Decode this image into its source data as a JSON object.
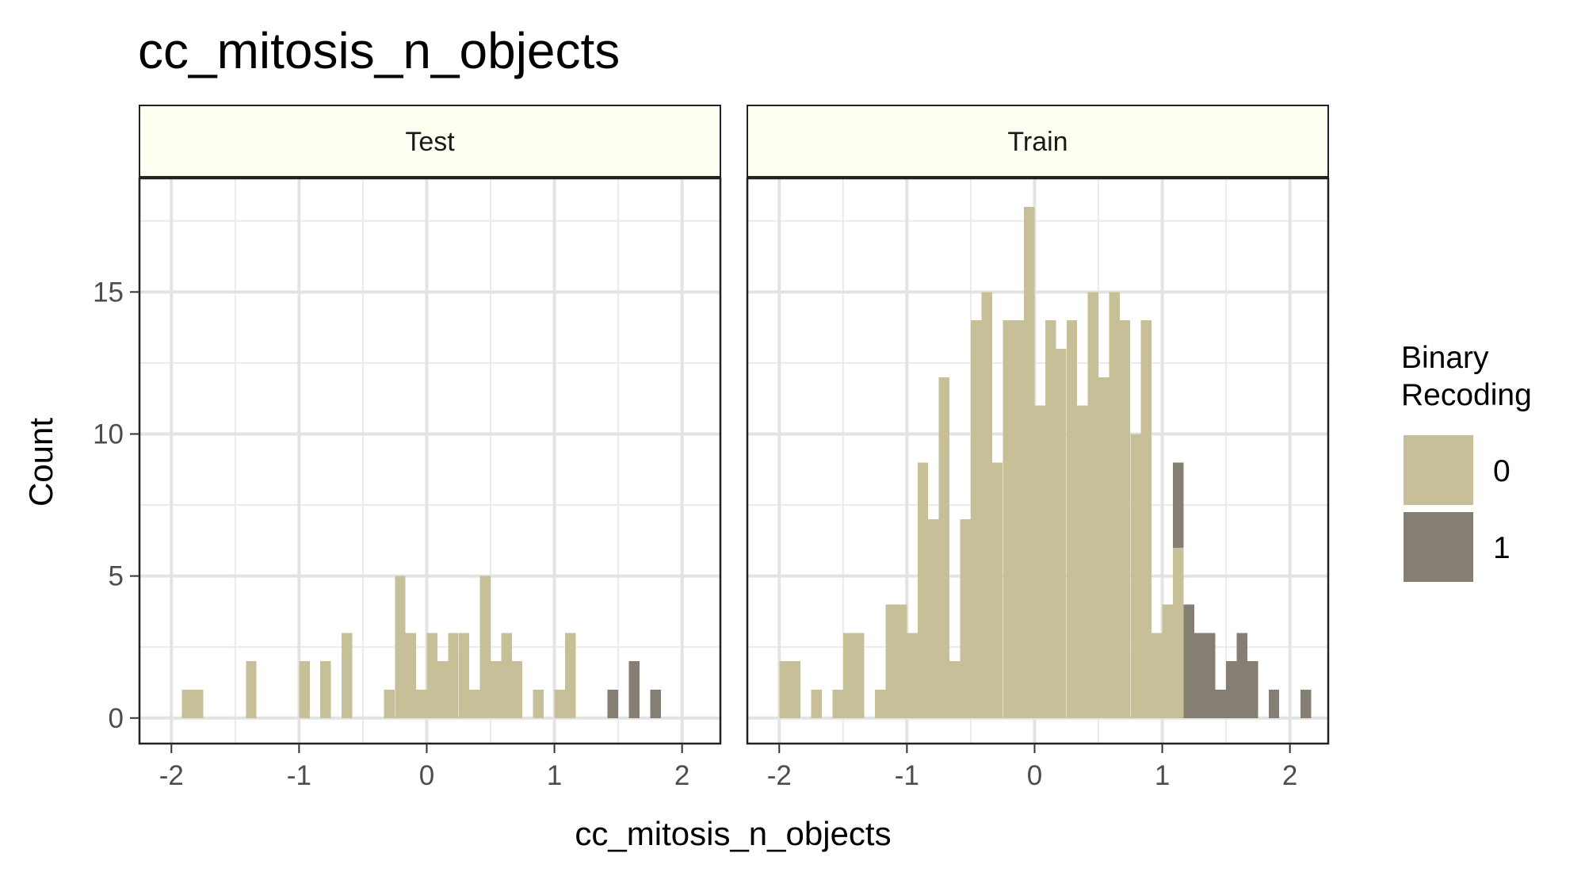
{
  "chart_data": {
    "type": "histogram",
    "title": "cc_mitosis_n_objects",
    "xlabel": "cc_mitosis_n_objects",
    "ylabel": "Count",
    "xlim": [
      -2.25,
      2.3
    ],
    "ylim": [
      -0.9,
      19
    ],
    "x_ticks": [
      -2,
      -1,
      0,
      1,
      2
    ],
    "x_tick_labels": [
      "-2",
      "-1",
      "0",
      "1",
      "2"
    ],
    "y_ticks": [
      0,
      5,
      10,
      15
    ],
    "y_tick_labels": [
      "0",
      "5",
      "10",
      "15"
    ],
    "grid": true,
    "bin_width": 0.0833,
    "facets": [
      "Test",
      "Train"
    ],
    "legend": {
      "title_lines": [
        "Binary",
        "Recoding"
      ],
      "position": "right",
      "entries": [
        {
          "label": "0",
          "color": "#c6bf98"
        },
        {
          "label": "1",
          "color": "#857e73"
        }
      ]
    },
    "panels": [
      {
        "facet": "Test",
        "bins": [
          {
            "x": -1.875,
            "count": 1,
            "group": "0"
          },
          {
            "x": -1.792,
            "count": 1,
            "group": "0"
          },
          {
            "x": -1.375,
            "count": 2,
            "group": "0"
          },
          {
            "x": -0.958,
            "count": 2,
            "group": "0"
          },
          {
            "x": -0.792,
            "count": 2,
            "group": "0"
          },
          {
            "x": -0.625,
            "count": 3,
            "group": "0"
          },
          {
            "x": -0.292,
            "count": 1,
            "group": "0"
          },
          {
            "x": -0.208,
            "count": 5,
            "group": "0"
          },
          {
            "x": -0.125,
            "count": 3,
            "group": "0"
          },
          {
            "x": -0.042,
            "count": 1,
            "group": "0"
          },
          {
            "x": 0.042,
            "count": 3,
            "group": "0"
          },
          {
            "x": 0.125,
            "count": 2,
            "group": "0"
          },
          {
            "x": 0.208,
            "count": 3,
            "group": "0"
          },
          {
            "x": 0.292,
            "count": 3,
            "group": "0"
          },
          {
            "x": 0.375,
            "count": 1,
            "group": "0"
          },
          {
            "x": 0.458,
            "count": 5,
            "group": "0"
          },
          {
            "x": 0.542,
            "count": 2,
            "group": "0"
          },
          {
            "x": 0.625,
            "count": 3,
            "group": "0"
          },
          {
            "x": 0.708,
            "count": 2,
            "group": "0"
          },
          {
            "x": 0.875,
            "count": 1,
            "group": "0"
          },
          {
            "x": 1.042,
            "count": 1,
            "group": "0"
          },
          {
            "x": 1.125,
            "count": 3,
            "group": "0"
          },
          {
            "x": 1.458,
            "count": 1,
            "group": "1"
          },
          {
            "x": 1.625,
            "count": 2,
            "group": "1"
          },
          {
            "x": 1.792,
            "count": 1,
            "group": "1"
          }
        ]
      },
      {
        "facet": "Train",
        "bins": [
          {
            "x": -1.958,
            "count": 2,
            "group": "0"
          },
          {
            "x": -1.875,
            "count": 2,
            "group": "0"
          },
          {
            "x": -1.708,
            "count": 1,
            "group": "0"
          },
          {
            "x": -1.542,
            "count": 1,
            "group": "0"
          },
          {
            "x": -1.458,
            "count": 3,
            "group": "0"
          },
          {
            "x": -1.375,
            "count": 3,
            "group": "0"
          },
          {
            "x": -1.208,
            "count": 1,
            "group": "0"
          },
          {
            "x": -1.125,
            "count": 4,
            "group": "0"
          },
          {
            "x": -1.042,
            "count": 4,
            "group": "0"
          },
          {
            "x": -0.958,
            "count": 3,
            "group": "0"
          },
          {
            "x": -0.875,
            "count": 9,
            "group": "0"
          },
          {
            "x": -0.792,
            "count": 7,
            "group": "0"
          },
          {
            "x": -0.708,
            "count": 12,
            "group": "0"
          },
          {
            "x": -0.625,
            "count": 2,
            "group": "0"
          },
          {
            "x": -0.542,
            "count": 7,
            "group": "0"
          },
          {
            "x": -0.458,
            "count": 14,
            "group": "0"
          },
          {
            "x": -0.375,
            "count": 15,
            "group": "0"
          },
          {
            "x": -0.292,
            "count": 9,
            "group": "0"
          },
          {
            "x": -0.208,
            "count": 14,
            "group": "0"
          },
          {
            "x": -0.125,
            "count": 14,
            "group": "0"
          },
          {
            "x": -0.042,
            "count": 18,
            "group": "0"
          },
          {
            "x": 0.042,
            "count": 11,
            "group": "0"
          },
          {
            "x": 0.125,
            "count": 14,
            "group": "0"
          },
          {
            "x": 0.208,
            "count": 13,
            "group": "0"
          },
          {
            "x": 0.292,
            "count": 14,
            "group": "0"
          },
          {
            "x": 0.375,
            "count": 11,
            "group": "0"
          },
          {
            "x": 0.458,
            "count": 15,
            "group": "0"
          },
          {
            "x": 0.542,
            "count": 12,
            "group": "0"
          },
          {
            "x": 0.625,
            "count": 15,
            "group": "0"
          },
          {
            "x": 0.708,
            "count": 14,
            "group": "0"
          },
          {
            "x": 0.792,
            "count": 10,
            "group": "0"
          },
          {
            "x": 0.875,
            "count": 14,
            "group": "0"
          },
          {
            "x": 0.958,
            "count": 3,
            "group": "0"
          },
          {
            "x": 1.042,
            "count": 4,
            "group": "0"
          },
          {
            "x": 1.125,
            "count": 6,
            "group": "0"
          },
          {
            "x": 1.125,
            "count": 3,
            "group": "1"
          },
          {
            "x": 1.208,
            "count": 4,
            "group": "1"
          },
          {
            "x": 1.292,
            "count": 3,
            "group": "1"
          },
          {
            "x": 1.375,
            "count": 3,
            "group": "1"
          },
          {
            "x": 1.458,
            "count": 1,
            "group": "1"
          },
          {
            "x": 1.542,
            "count": 2,
            "group": "1"
          },
          {
            "x": 1.625,
            "count": 3,
            "group": "1"
          },
          {
            "x": 1.708,
            "count": 2,
            "group": "1"
          },
          {
            "x": 1.875,
            "count": 1,
            "group": "1"
          },
          {
            "x": 2.125,
            "count": 1,
            "group": "1"
          }
        ]
      }
    ]
  }
}
